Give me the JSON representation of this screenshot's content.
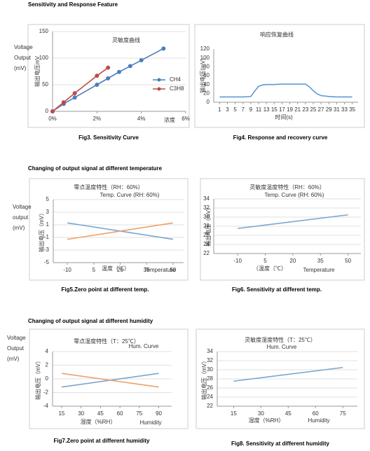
{
  "heading": "Sensitivity and Response Feature",
  "sections": [
    "Changing of output signal at different temperature",
    "Changing of output signal at different humidity"
  ],
  "chart_data": [
    {
      "type": "line",
      "title": "灵敏度曲线",
      "ylabel": "输出电压mV",
      "xlabel": "浓度",
      "caption": "Fig3. Sensitivity Curve",
      "side_label": [
        "Voltage",
        "Output",
        "(mV)"
      ],
      "xlim": [
        0,
        6
      ],
      "xticks": [
        {
          "value": 0,
          "label": "0%"
        },
        {
          "value": 2,
          "label": "2%"
        },
        {
          "value": 4,
          "label": "4%"
        },
        {
          "value": 6,
          "label": "6%"
        }
      ],
      "ylim": [
        0,
        150
      ],
      "yticks": [
        0,
        50,
        100,
        150
      ],
      "grid": true,
      "markers": true,
      "legend": "right",
      "series": [
        {
          "name": "CH4",
          "color": "#4a7ebb",
          "x": [
            0,
            0.5,
            1,
            2,
            2.5,
            3,
            3.5,
            4,
            5
          ],
          "values": [
            0,
            14,
            26,
            50,
            62,
            74,
            85,
            96,
            118
          ]
        },
        {
          "name": "C3H8",
          "color": "#be4b48",
          "x": [
            0,
            0.5,
            1,
            2,
            2.5
          ],
          "values": [
            0,
            17,
            34,
            67,
            82
          ]
        }
      ]
    },
    {
      "type": "line",
      "title": "响应恢复曲线",
      "ylabel": "输出电压(mV)",
      "xlabel": "时间(s)",
      "caption": "Fig4.  Response  and  recovery  curve",
      "xlim": [
        -0.5,
        36.5
      ],
      "xticks": [
        1,
        3,
        5,
        7,
        9,
        11,
        13,
        15,
        17,
        19,
        21,
        23,
        25,
        27,
        29,
        31,
        33,
        35
      ],
      "ylim": [
        0,
        120
      ],
      "yticks": [
        0,
        20,
        40,
        60,
        80,
        100,
        120
      ],
      "grid": false,
      "x": [
        1,
        3,
        5,
        7,
        9,
        10,
        11,
        12,
        13,
        15,
        17,
        19,
        21,
        23,
        24,
        25,
        26,
        27,
        29,
        31,
        33,
        35
      ],
      "values": [
        12,
        12,
        12,
        12,
        13,
        25,
        36,
        39,
        40,
        40,
        41,
        41,
        41,
        41,
        35,
        26,
        19,
        15,
        13,
        12,
        12,
        12
      ],
      "color": "#5b9bd5"
    },
    {
      "type": "line",
      "title": "零点温度特性（RH：60%）",
      "subtitle": "Temp. Curve (RH: 60%)",
      "ylabel": "输出电压（mV）",
      "xlabel": "温度（℃）",
      "xlabel_en": "Temperature",
      "caption": "Fig5.Zero point at different temp.",
      "side_label": [
        "Voltage",
        "output",
        "(mV)"
      ],
      "xlim": [
        -18,
        56
      ],
      "xticks": [
        -10,
        5,
        20,
        35,
        50
      ],
      "ylim": [
        -5,
        5
      ],
      "yticks": [
        -5,
        -3,
        -1,
        1,
        3,
        5
      ],
      "grid": true,
      "series": [
        {
          "color": "#7aa6d0",
          "x": [
            -10,
            50
          ],
          "values": [
            1.3,
            -1.3
          ]
        },
        {
          "color": "#f0a06a",
          "x": [
            -10,
            50
          ],
          "values": [
            -1.3,
            1.3
          ]
        }
      ]
    },
    {
      "type": "line",
      "title": "灵敏度温度特性（RH：60%）",
      "subtitle": "Temp. Curve (RH: 60%)",
      "ylabel": "输出电压（mV）",
      "xlabel": "（温度（℃）",
      "xlabel_en": "Temperature",
      "caption": "Fig6. Sensitivity at different temp.",
      "xlim": [
        -23,
        57
      ],
      "xticks": [
        -10,
        5,
        20,
        35,
        50
      ],
      "ylim": [
        22,
        34
      ],
      "yticks": [
        22,
        24,
        26,
        28,
        30,
        32,
        34
      ],
      "grid": true,
      "series": [
        {
          "color": "#7aa6d0",
          "x": [
            -10,
            50
          ],
          "values": [
            27.5,
            30.5
          ]
        }
      ]
    },
    {
      "type": "line",
      "title": "零点湿度特性（T：25℃）",
      "subtitle": "Hum. Curve",
      "ylabel": "输出电压（mV）",
      "xlabel": "湿度（%RH）",
      "xlabel_en": "Humidity",
      "caption": "Fig7.Zero point at different humidity",
      "side_label": [
        "Voltage",
        "Output",
        "(mV)"
      ],
      "xlim": [
        8,
        100
      ],
      "xticks": [
        15,
        30,
        45,
        60,
        75,
        90
      ],
      "ylim": [
        -4,
        4
      ],
      "yticks": [
        -4,
        -2,
        0,
        2,
        4
      ],
      "grid": true,
      "series": [
        {
          "color": "#7aa6d0",
          "x": [
            15,
            90
          ],
          "values": [
            -1.2,
            0.8
          ]
        },
        {
          "color": "#f0a06a",
          "x": [
            15,
            90
          ],
          "values": [
            0.8,
            -1.2
          ]
        }
      ]
    },
    {
      "type": "line",
      "title": "灵敏度湿度特性（T：25℃）",
      "subtitle": "Hum. Curve",
      "ylabel": "输出电压（mV）",
      "xlabel": "湿度（%RH）",
      "xlabel_en": "Humidity",
      "caption": "Fig8. Sensitivity at different humidity",
      "xlim": [
        6,
        83
      ],
      "xticks": [
        15,
        30,
        45,
        60,
        75
      ],
      "ylim": [
        22,
        34
      ],
      "yticks": [
        22,
        24,
        26,
        28,
        30,
        32,
        34
      ],
      "grid": true,
      "series": [
        {
          "color": "#7aa6d0",
          "x": [
            15,
            75
          ],
          "values": [
            27.5,
            30.5
          ]
        }
      ]
    }
  ]
}
